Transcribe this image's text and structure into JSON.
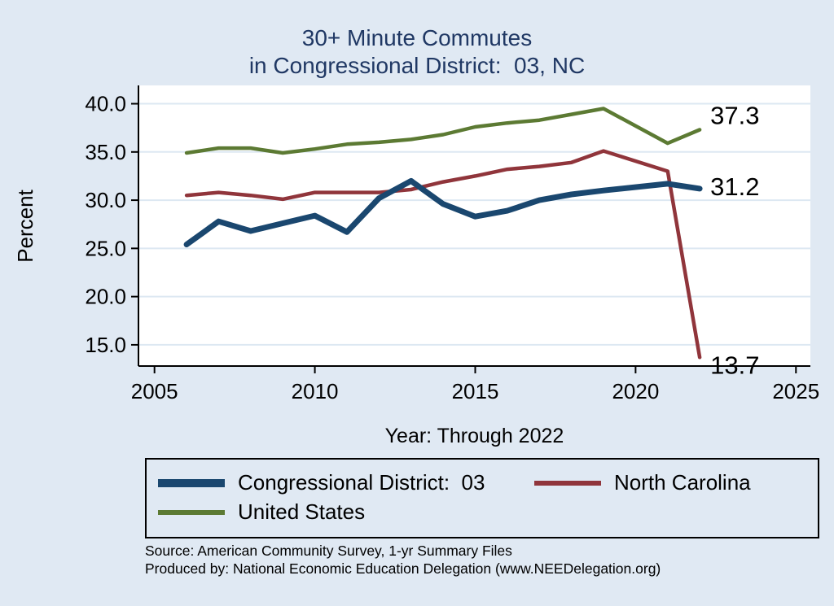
{
  "title": {
    "line1": "30+ Minute Commutes",
    "line2": "in Congressional District:  03, NC"
  },
  "axes": {
    "y_label": "Percent",
    "x_label": "Year: Through 2022",
    "y_ticks": [
      {
        "label": "40.0",
        "value": 40
      },
      {
        "label": "35.0",
        "value": 35
      },
      {
        "label": "30.0",
        "value": 30
      },
      {
        "label": "25.0",
        "value": 25
      },
      {
        "label": "20.0",
        "value": 20
      },
      {
        "label": "15.0",
        "value": 15
      }
    ],
    "x_ticks": [
      {
        "label": "2005",
        "value": 2005
      },
      {
        "label": "2010",
        "value": 2010
      },
      {
        "label": "2015",
        "value": 2015
      },
      {
        "label": "2020",
        "value": 2020
      },
      {
        "label": "2025",
        "value": 2025
      }
    ]
  },
  "chart_data": {
    "type": "line",
    "title": "30+ Minute Commutes in Congressional District: 03, NC",
    "xlabel": "Year: Through 2022",
    "ylabel": "Percent",
    "xlim": [
      2004.5,
      2025.45
    ],
    "ylim": [
      12.8,
      41.9
    ],
    "grid": "horizontal",
    "legend_position": "bottom",
    "x": [
      2006,
      2007,
      2008,
      2009,
      2010,
      2011,
      2012,
      2013,
      2014,
      2015,
      2016,
      2017,
      2018,
      2019,
      2021,
      2022
    ],
    "series": [
      {
        "id": "united-states",
        "name": "United States",
        "color": "#5c7a33",
        "width": 4.5,
        "values": [
          34.9,
          35.4,
          35.4,
          34.9,
          35.3,
          35.8,
          36.0,
          36.3,
          36.8,
          37.6,
          38.0,
          38.3,
          38.9,
          39.5,
          35.9,
          37.3
        ]
      },
      {
        "id": "north-carolina",
        "name": "North Carolina",
        "color": "#90353b",
        "width": 4.5,
        "values": [
          30.5,
          30.8,
          30.5,
          30.1,
          30.8,
          30.8,
          30.8,
          31.1,
          31.9,
          32.5,
          33.2,
          33.5,
          33.9,
          35.1,
          33.0,
          13.7
        ]
      },
      {
        "id": "district-03",
        "name": "Congressional District:  03",
        "color": "#1a476f",
        "width": 7,
        "values": [
          25.4,
          27.8,
          26.8,
          27.6,
          28.4,
          26.7,
          30.2,
          32.0,
          29.6,
          28.3,
          28.9,
          30.0,
          30.6,
          31.0,
          31.7,
          31.2
        ]
      }
    ],
    "end_labels": [
      {
        "text": "37.3",
        "at_y": 38.8
      },
      {
        "text": "31.2",
        "at_y": 31.4
      },
      {
        "text": "13.7",
        "at_y": 12.9
      }
    ]
  },
  "legend": {
    "items": [
      {
        "label": "Congressional District:  03",
        "color": "#1a476f",
        "thick": true
      },
      {
        "label": "North Carolina",
        "color": "#90353b",
        "thick": false
      },
      {
        "label": "United States",
        "color": "#5c7a33",
        "thick": false
      }
    ]
  },
  "source": {
    "line1": "Source: American Community Survey, 1-yr Summary Files",
    "line2": "Produced by: National Economic Education Delegation (www.NEEDelegation.org)"
  }
}
